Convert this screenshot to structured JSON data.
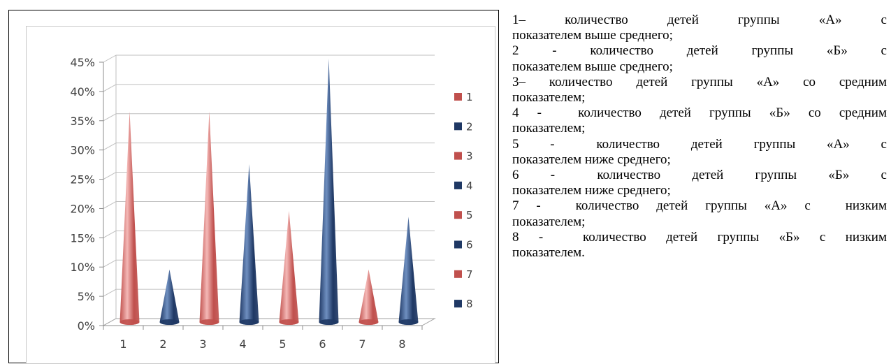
{
  "chart_data": {
    "type": "bar",
    "bar_shape": "cone",
    "categories": [
      "1",
      "2",
      "3",
      "4",
      "5",
      "6",
      "7",
      "8"
    ],
    "values": [
      36,
      9,
      36,
      27,
      19,
      45,
      9,
      18
    ],
    "value_unit": "%",
    "ylim": [
      0,
      45
    ],
    "yticks": [
      "0%",
      "5%",
      "10%",
      "15%",
      "20%",
      "25%",
      "30%",
      "35%",
      "40%",
      "45%"
    ],
    "ytick_values": [
      0,
      5,
      10,
      15,
      20,
      25,
      30,
      35,
      40,
      45
    ],
    "grid": true,
    "legend_position": "right",
    "legend": [
      "1",
      "2",
      "3",
      "4",
      "5",
      "6",
      "7",
      "8"
    ],
    "colors": [
      "#c0504d",
      "#1f3864",
      "#c0504d",
      "#1f3864",
      "#c0504d",
      "#1f3864",
      "#c0504d",
      "#1f3864"
    ],
    "color_highlights": [
      "#f4b8b6",
      "#6f8fc0",
      "#f4b8b6",
      "#6f8fc0",
      "#f4b8b6",
      "#6f8fc0",
      "#f4b8b6",
      "#6f8fc0"
    ],
    "title": "",
    "xlabel": "",
    "ylabel": ""
  },
  "legend_text": [
    {
      "first": "1–   количество   детей   группы   «А»   с",
      "rest": "показателем выше среднего;"
    },
    {
      "first": "2   -   количество   детей   группы   «Б»   с",
      "rest": "показателем выше среднего;"
    },
    {
      "first": "3– количество детей группы «А» со средним",
      "rest": "показателем;"
    },
    {
      "first": "4 -  количество детей группы «Б» со средним",
      "rest": "показателем;"
    },
    {
      "first": "5   -    количество   детей   группы   «А»   с",
      "rest": "показателем ниже среднего;"
    },
    {
      "first": "6   -    количество   детей   группы   «Б»   с",
      "rest": "показателем ниже среднего;"
    },
    {
      "first": "7 -  количество детей группы «А» с  низким",
      "rest": "показателем;"
    },
    {
      "first": "8 -  количество детей группы «Б» с низким",
      "rest": "показателем."
    }
  ]
}
